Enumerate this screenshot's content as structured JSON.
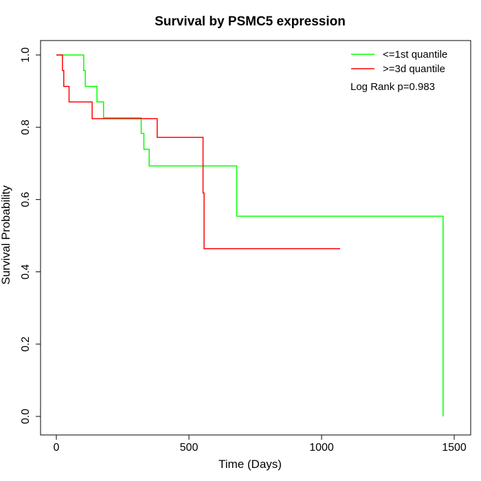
{
  "chart_data": {
    "type": "line",
    "title": "Survival by PSMC5 expression",
    "xlabel": "Time (Days)",
    "ylabel": "Survival Probability",
    "xlim": [
      0,
      1500
    ],
    "ylim": [
      0,
      1.0
    ],
    "x_ticks": [
      0,
      500,
      1000,
      1500
    ],
    "x_tick_labels": [
      "0",
      "500",
      "1000",
      "1500"
    ],
    "y_ticks": [
      0.0,
      0.2,
      0.4,
      0.6,
      0.8,
      1.0
    ],
    "y_tick_labels": [
      "0.0",
      "0.2",
      "0.4",
      "0.6",
      "0.8",
      "1.0"
    ],
    "grid": false,
    "legend_position": "top-right",
    "annotation": "Log Rank p=0.983",
    "series": [
      {
        "name": "<=1st quantile",
        "color": "#00ff00",
        "step_points": [
          [
            0,
            1.0
          ],
          [
            103,
            1.0
          ],
          [
            103,
            0.957
          ],
          [
            109,
            0.957
          ],
          [
            109,
            0.913
          ],
          [
            153,
            0.913
          ],
          [
            153,
            0.87
          ],
          [
            178,
            0.87
          ],
          [
            178,
            0.826
          ],
          [
            320,
            0.826
          ],
          [
            320,
            0.783
          ],
          [
            330,
            0.783
          ],
          [
            330,
            0.739
          ],
          [
            350,
            0.739
          ],
          [
            350,
            0.693
          ],
          [
            680,
            0.693
          ],
          [
            680,
            0.554
          ],
          [
            1458,
            0.554
          ],
          [
            1458,
            0.0
          ]
        ]
      },
      {
        "name": ">=3d quantile",
        "color": "#ff0000",
        "step_points": [
          [
            0,
            1.0
          ],
          [
            23,
            1.0
          ],
          [
            23,
            0.957
          ],
          [
            28,
            0.957
          ],
          [
            28,
            0.913
          ],
          [
            48,
            0.913
          ],
          [
            48,
            0.87
          ],
          [
            135,
            0.87
          ],
          [
            135,
            0.824
          ],
          [
            380,
            0.824
          ],
          [
            380,
            0.772
          ],
          [
            553,
            0.772
          ],
          [
            553,
            0.618
          ],
          [
            557,
            0.618
          ],
          [
            557,
            0.464
          ],
          [
            1070,
            0.464
          ]
        ]
      }
    ]
  }
}
